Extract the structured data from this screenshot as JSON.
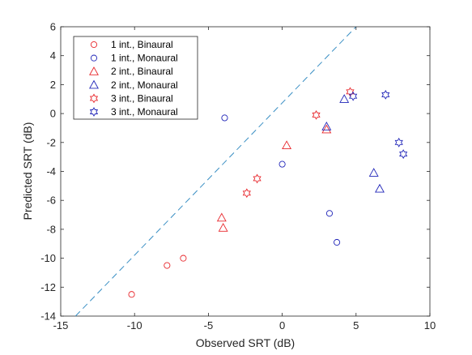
{
  "chart_data": {
    "type": "scatter",
    "title": "",
    "xlabel": "Observed SRT (dB)",
    "ylabel": "Predicted SRT (dB)",
    "xlim": [
      -15,
      10
    ],
    "ylim": [
      -14,
      6
    ],
    "xticks": [
      -15,
      -10,
      -5,
      0,
      5,
      10
    ],
    "yticks": [
      -14,
      -12,
      -10,
      -8,
      -6,
      -4,
      -2,
      0,
      2,
      4,
      6
    ],
    "grid": false,
    "legend_position": "top-left",
    "reference_line": {
      "style": "dashed",
      "color": "#3a8fc4",
      "points": [
        [
          -14,
          -14
        ],
        [
          5,
          6
        ]
      ]
    },
    "series": [
      {
        "name": "1 int., Binaural",
        "marker": "circle",
        "color": "#e8262b",
        "points": [
          [
            -10.2,
            -12.5
          ],
          [
            -7.8,
            -10.5
          ],
          [
            -6.7,
            -10.0
          ]
        ]
      },
      {
        "name": "1 int., Monaural",
        "marker": "circle",
        "color": "#1f24b8",
        "points": [
          [
            -3.9,
            -0.3
          ],
          [
            0.0,
            -3.5
          ],
          [
            3.2,
            -6.9
          ],
          [
            3.7,
            -8.9
          ]
        ]
      },
      {
        "name": "2 int., Binaural",
        "marker": "triangle",
        "color": "#e8262b",
        "points": [
          [
            -4.1,
            -7.2
          ],
          [
            -4.0,
            -7.9
          ],
          [
            0.3,
            -2.2
          ],
          [
            3.0,
            -1.1
          ]
        ]
      },
      {
        "name": "2 int., Monaural",
        "marker": "triangle",
        "color": "#1f24b8",
        "points": [
          [
            3.0,
            -0.9
          ],
          [
            4.2,
            1.0
          ],
          [
            6.2,
            -4.1
          ],
          [
            6.6,
            -5.2
          ]
        ]
      },
      {
        "name": "3 int., Binaural",
        "marker": "hexagram",
        "color": "#e8262b",
        "points": [
          [
            -2.4,
            -5.5
          ],
          [
            -1.7,
            -4.5
          ],
          [
            2.3,
            -0.1
          ],
          [
            4.6,
            1.5
          ]
        ]
      },
      {
        "name": "3 int., Monaural",
        "marker": "hexagram",
        "color": "#1f24b8",
        "points": [
          [
            4.8,
            1.2
          ],
          [
            7.0,
            1.3
          ],
          [
            7.9,
            -2.0
          ],
          [
            8.2,
            -2.8
          ]
        ]
      }
    ]
  }
}
